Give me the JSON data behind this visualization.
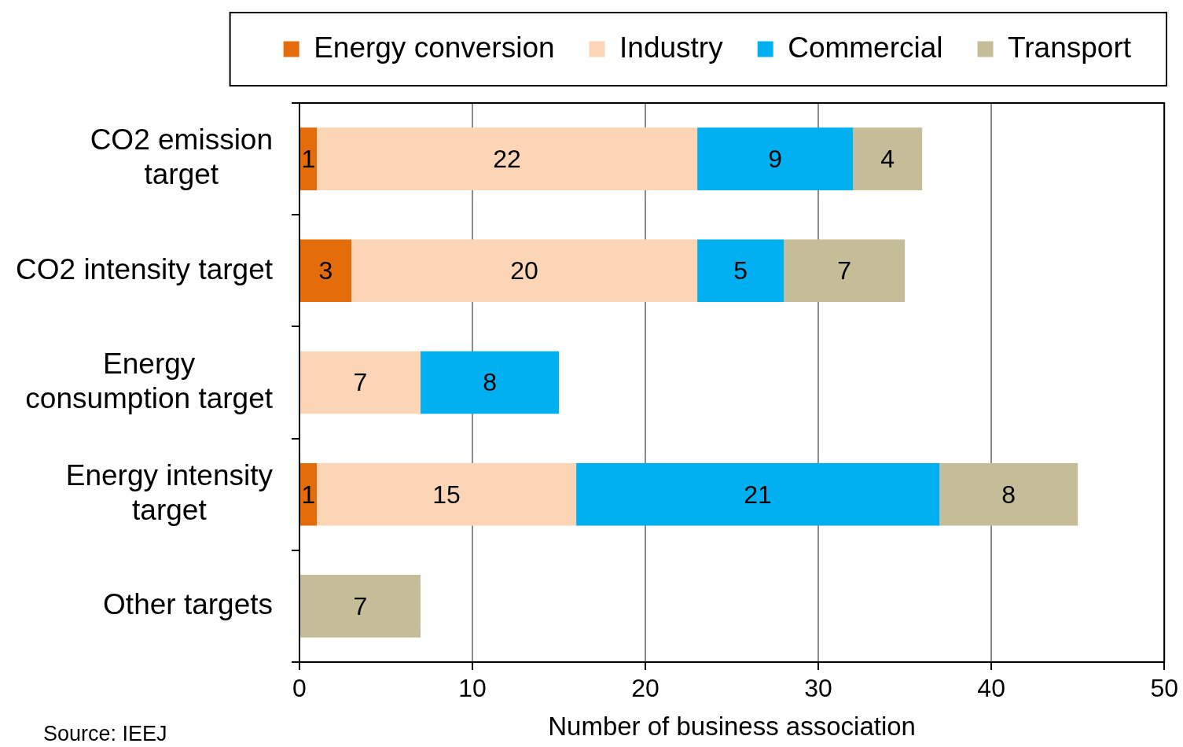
{
  "chart_data": {
    "type": "bar",
    "orientation": "horizontal",
    "stacked": true,
    "categories": [
      "CO2 emission target",
      "CO2 intensity target",
      "Energy consumption target",
      "Energy intensity target",
      "Other targets"
    ],
    "series": [
      {
        "name": "Energy conversion",
        "color": "#e46c0a",
        "values": [
          1,
          3,
          null,
          1,
          null
        ]
      },
      {
        "name": "Industry",
        "color": "#fbd5b5",
        "values": [
          22,
          20,
          7,
          15,
          null
        ]
      },
      {
        "name": "Commercial",
        "color": "#00b0f0",
        "values": [
          9,
          5,
          8,
          21,
          null
        ]
      },
      {
        "name": "Transport",
        "color": "#c4bd97",
        "values": [
          4,
          7,
          null,
          8,
          7
        ]
      }
    ],
    "xlim": [
      0,
      50
    ],
    "xticks": [
      0,
      10,
      20,
      30,
      40,
      50
    ],
    "xlabel": "Number of business association",
    "grid": "x",
    "legend": "top",
    "data_labels": true,
    "annotations": [
      "Source: IEEJ"
    ]
  }
}
